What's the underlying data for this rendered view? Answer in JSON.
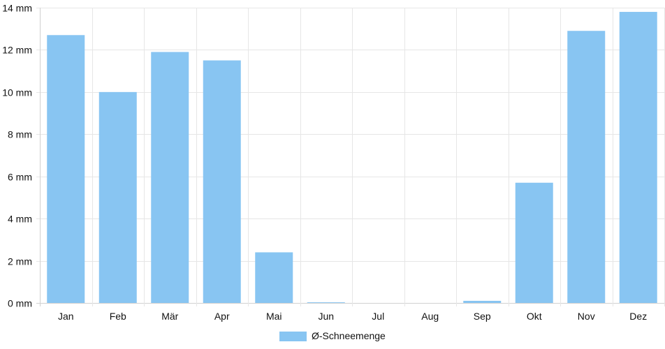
{
  "chart_data": {
    "type": "bar",
    "categories": [
      "Jan",
      "Feb",
      "Mär",
      "Apr",
      "Mai",
      "Jun",
      "Jul",
      "Aug",
      "Sep",
      "Okt",
      "Nov",
      "Dez"
    ],
    "series": [
      {
        "name": "Ø-Schneemenge",
        "color": "#88c5f2",
        "values": [
          12.7,
          10.0,
          11.9,
          11.5,
          2.4,
          0.03,
          0,
          0,
          0.1,
          5.7,
          12.9,
          13.8
        ]
      }
    ],
    "y_unit": "mm",
    "ylim": [
      0,
      14
    ],
    "y_ticks": [
      0,
      2,
      4,
      6,
      8,
      10,
      12,
      14
    ],
    "y_tick_labels": [
      "0 mm",
      "2 mm",
      "4 mm",
      "6 mm",
      "8 mm",
      "10 mm",
      "12 mm",
      "14 mm"
    ],
    "grid": true,
    "legend_position": "bottom-center"
  }
}
